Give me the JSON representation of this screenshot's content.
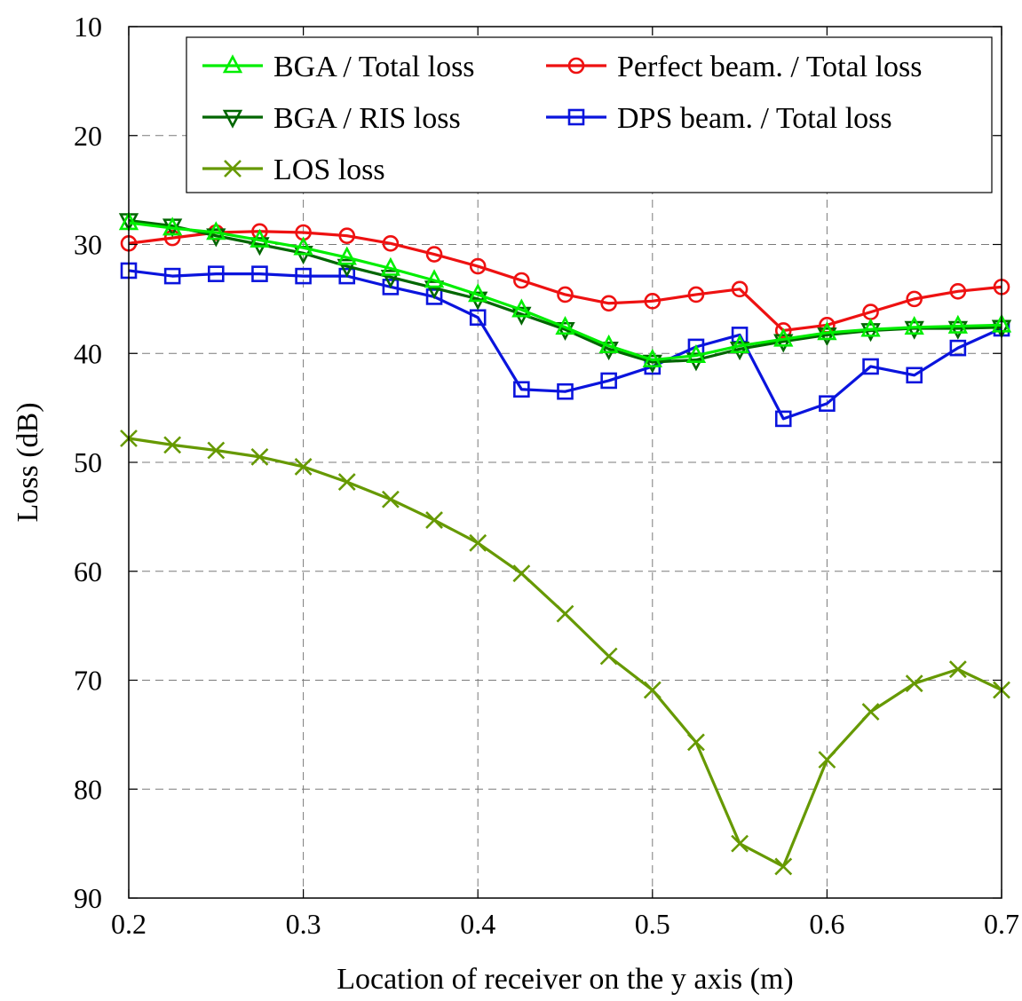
{
  "chart_data": {
    "type": "line",
    "xlabel": "Location of receiver on the y axis (m)",
    "ylabel": "Loss (dB)",
    "xlim": [
      0.2,
      0.7
    ],
    "ylim": [
      10,
      90
    ],
    "y_reversed": true,
    "grid": true,
    "legend_position": "top-right",
    "xticks": [
      "0.2",
      "0.3",
      "0.4",
      "0.5",
      "0.6",
      "0.7"
    ],
    "yticks": [
      "10",
      "20",
      "30",
      "40",
      "50",
      "60",
      "70",
      "80",
      "90"
    ],
    "x": [
      0.2,
      0.225,
      0.25,
      0.275,
      0.3,
      0.325,
      0.35,
      0.375,
      0.4,
      0.425,
      0.45,
      0.475,
      0.5,
      0.525,
      0.55,
      0.575,
      0.6,
      0.625,
      0.65,
      0.675,
      0.7
    ],
    "series": [
      {
        "name": "BGA / Total loss",
        "color": "#00ee00",
        "marker": "triangle-up",
        "values": [
          28.0,
          28.5,
          28.9,
          29.6,
          30.3,
          31.2,
          32.2,
          33.3,
          34.6,
          36.0,
          37.6,
          39.3,
          40.6,
          40.2,
          39.3,
          38.7,
          38.1,
          37.8,
          37.6,
          37.5,
          37.4
        ]
      },
      {
        "name": "Perfect beam. / Total loss",
        "color": "#ee1111",
        "marker": "circle",
        "values": [
          29.9,
          29.4,
          28.9,
          28.8,
          28.9,
          29.2,
          29.9,
          30.9,
          32.0,
          33.3,
          34.6,
          35.4,
          35.2,
          34.6,
          34.1,
          37.9,
          37.4,
          36.2,
          35.0,
          34.3,
          33.9
        ]
      },
      {
        "name": "BGA / RIS loss",
        "color": "#006600",
        "marker": "triangle-down",
        "values": [
          27.8,
          28.3,
          29.2,
          30.0,
          30.8,
          32.0,
          33.0,
          34.0,
          35.0,
          36.4,
          37.8,
          39.6,
          40.8,
          40.6,
          39.6,
          38.9,
          38.3,
          37.9,
          37.7,
          37.7,
          37.6
        ]
      },
      {
        "name": "DPS beam. / Total loss",
        "color": "#0a14dd",
        "marker": "square",
        "values": [
          32.4,
          32.9,
          32.7,
          32.7,
          32.9,
          32.9,
          33.9,
          34.8,
          36.7,
          43.3,
          43.5,
          42.5,
          41.2,
          39.4,
          38.3,
          46.0,
          44.6,
          41.2,
          42.0,
          39.5,
          37.7
        ]
      },
      {
        "name": "LOS loss",
        "color": "#669900",
        "marker": "x",
        "values": [
          47.8,
          48.4,
          48.9,
          49.5,
          50.4,
          51.8,
          53.4,
          55.3,
          57.4,
          60.2,
          63.9,
          67.8,
          70.9,
          75.7,
          85.0,
          87.1,
          77.3,
          72.9,
          70.3,
          69.0,
          70.9
        ]
      }
    ]
  }
}
